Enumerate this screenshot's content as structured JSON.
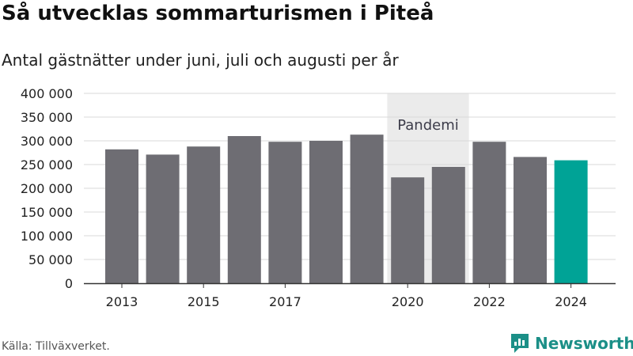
{
  "chart_data": {
    "type": "bar",
    "title": "Så utvecklas sommarturismen i Piteå",
    "subtitle": "Antal gästnätter under juni, juli och augusti per år",
    "categories": [
      "2013",
      "2014",
      "2015",
      "2016",
      "2017",
      "2018",
      "2019",
      "2020",
      "2021",
      "2022",
      "2023",
      "2024"
    ],
    "values": [
      282000,
      271000,
      288000,
      310000,
      298000,
      300000,
      313000,
      223000,
      245000,
      298000,
      266000,
      259000
    ],
    "x_tick_labels": [
      "2013",
      "2015",
      "2017",
      "2020",
      "2022",
      "2024"
    ],
    "y_ticks": [
      "0",
      "50 000",
      "100 000",
      "150 000",
      "200 000",
      "250 000",
      "300 000",
      "350 000",
      "400 000"
    ],
    "ylim": [
      0,
      400000
    ],
    "grid": true,
    "highlight_category": "2024",
    "shaded_period": {
      "from": "2020",
      "to": "2021",
      "label": "Pandemi"
    },
    "colors": {
      "bar": "#6e6d73",
      "highlight": "#00a396",
      "shade": "#ebebeb",
      "grid": "#d9d9d9"
    }
  },
  "footer": {
    "source": "Källa: Tillväxverket.",
    "logo_text": "Newsworthy",
    "logo_icon": "newsworthy-logo-icon"
  }
}
